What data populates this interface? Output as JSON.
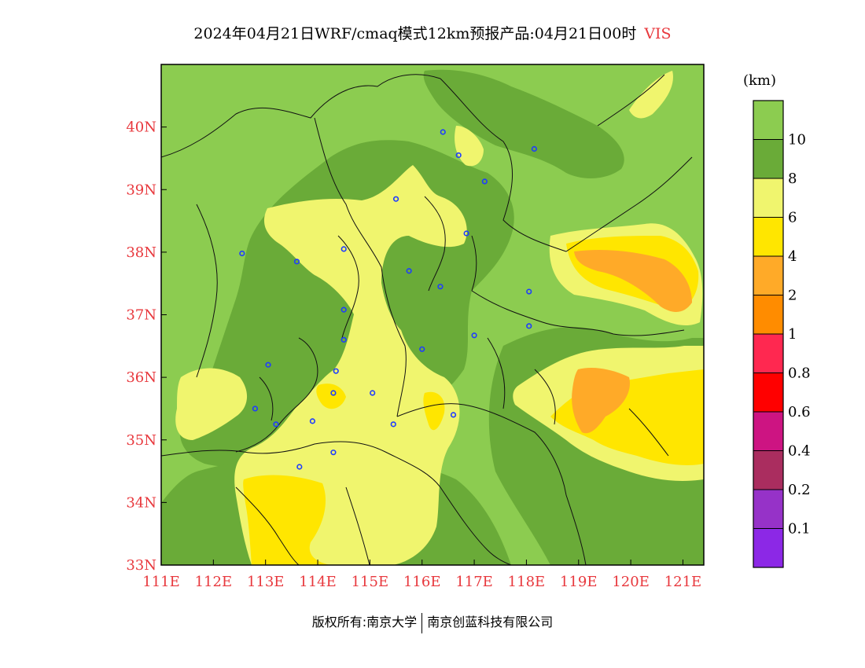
{
  "title": {
    "main": "2024年04月21日WRF/cmaq模式12km预报产品:04月21日00时",
    "variable": "VIS"
  },
  "map": {
    "lon_range": [
      111,
      121.4
    ],
    "lat_range": [
      33,
      41
    ],
    "lon_ticks": [
      {
        "value": 111,
        "label": "111E"
      },
      {
        "value": 112,
        "label": "112E"
      },
      {
        "value": 113,
        "label": "113E"
      },
      {
        "value": 114,
        "label": "114E"
      },
      {
        "value": 115,
        "label": "115E"
      },
      {
        "value": 116,
        "label": "116E"
      },
      {
        "value": 117,
        "label": "117E"
      },
      {
        "value": 118,
        "label": "118E"
      },
      {
        "value": 119,
        "label": "119E"
      },
      {
        "value": 120,
        "label": "120E"
      },
      {
        "value": 121,
        "label": "121E"
      }
    ],
    "lat_ticks": [
      {
        "value": 34,
        "label": "34N"
      },
      {
        "value": 35,
        "label": "35N"
      },
      {
        "value": 36,
        "label": "36N"
      },
      {
        "value": 37,
        "label": "37N"
      },
      {
        "value": 38,
        "label": "38N"
      },
      {
        "value": 39,
        "label": "39N"
      },
      {
        "value": 40,
        "label": "40N"
      },
      {
        "value": 33,
        "label": "33N"
      }
    ],
    "base_color": "#8ccc50",
    "stations": [
      [
        116.4,
        39.92
      ],
      [
        116.7,
        39.55
      ],
      [
        117.2,
        39.13
      ],
      [
        118.15,
        39.65
      ],
      [
        115.5,
        38.85
      ],
      [
        114.5,
        38.05
      ],
      [
        113.6,
        37.85
      ],
      [
        112.55,
        37.98
      ],
      [
        115.75,
        37.7
      ],
      [
        116.35,
        37.45
      ],
      [
        116.85,
        38.3
      ],
      [
        118.05,
        37.37
      ],
      [
        118.05,
        36.82
      ],
      [
        117.0,
        36.67
      ],
      [
        116.0,
        36.45
      ],
      [
        114.5,
        37.08
      ],
      [
        114.5,
        36.6
      ],
      [
        114.35,
        36.1
      ],
      [
        114.3,
        35.75
      ],
      [
        115.05,
        35.75
      ],
      [
        115.45,
        35.25
      ],
      [
        116.6,
        35.4
      ],
      [
        113.9,
        35.3
      ],
      [
        113.2,
        35.25
      ],
      [
        112.8,
        35.5
      ],
      [
        113.05,
        36.2
      ],
      [
        114.3,
        34.8
      ],
      [
        113.65,
        34.57
      ]
    ]
  },
  "legend": {
    "unit": "(km)",
    "bins": [
      {
        "color": "#8ccc50"
      },
      {
        "color": "#6aab38",
        "label": "10"
      },
      {
        "color": "#f0f56e",
        "label": "8"
      },
      {
        "color": "#ffe600",
        "label": "6"
      },
      {
        "color": "#ffaa28",
        "label": "4"
      },
      {
        "color": "#ff8c00",
        "label": "2"
      },
      {
        "color": "#ff2850",
        "label": "1"
      },
      {
        "color": "#ff0000",
        "label": "0.8"
      },
      {
        "color": "#cd1482",
        "label": "0.6"
      },
      {
        "color": "#aa2d5f",
        "label": "0.4"
      },
      {
        "color": "#9632c8",
        "label": "0.2"
      },
      {
        "color": "#8c28e6",
        "label": "0.1"
      }
    ]
  },
  "footer": {
    "left": "版权所有:南京大学",
    "right": "南京创蓝科技有限公司"
  }
}
